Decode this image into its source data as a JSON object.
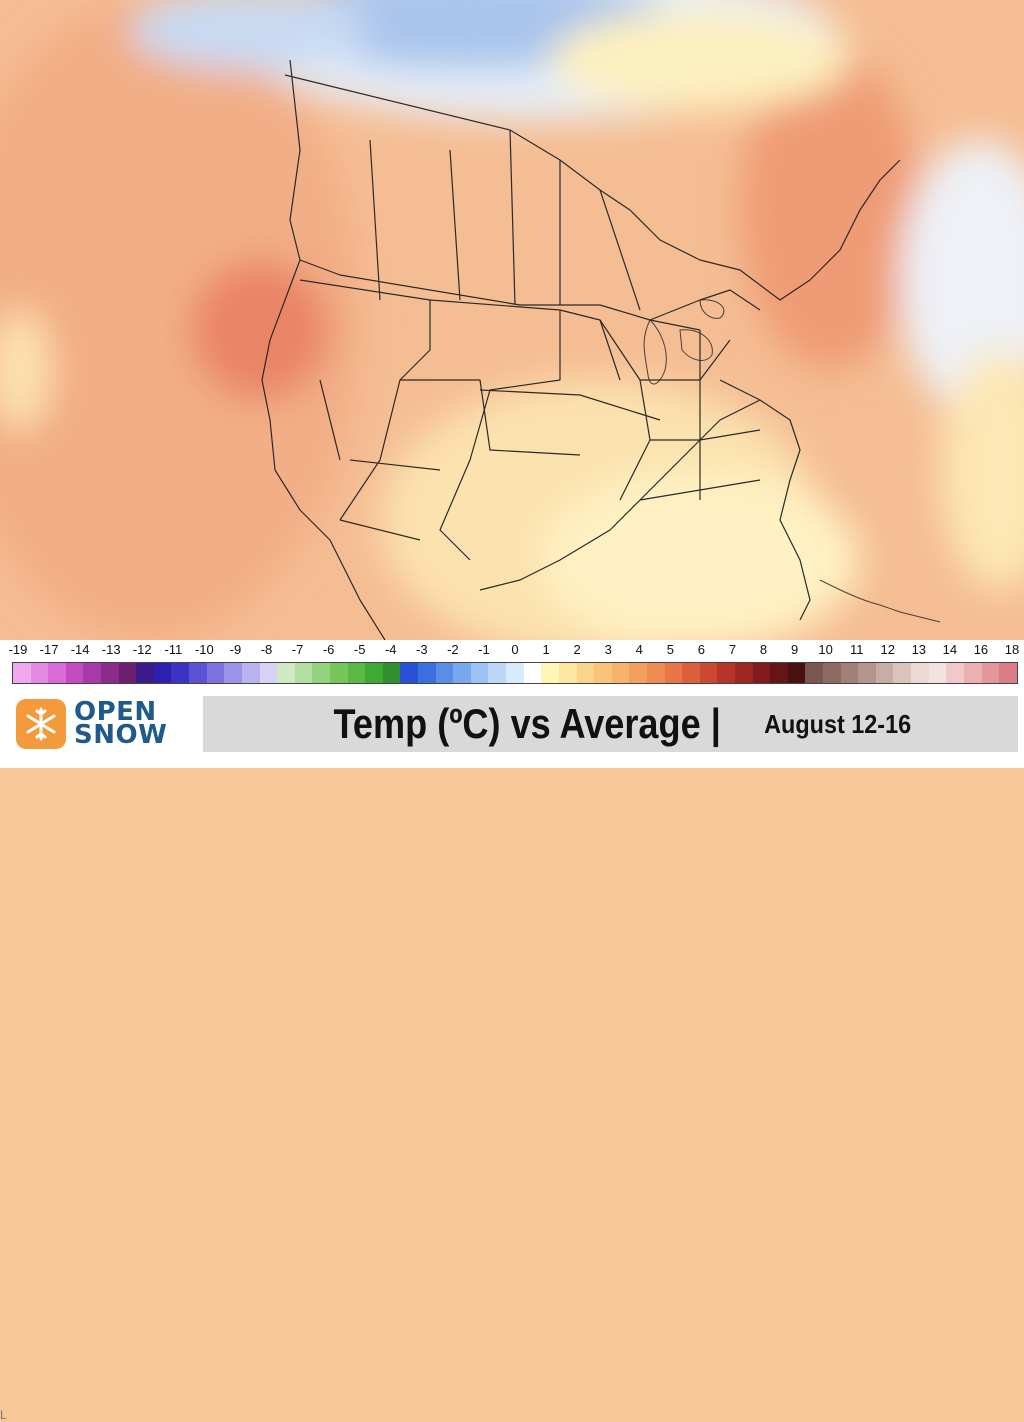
{
  "map": {
    "description_colors": {
      "ocean_warm": "#f5b98d",
      "land_warm": "#f6c197",
      "hot": "#ea8466",
      "mild": "#fbe6b4",
      "neutral": "#fff8cf",
      "cool": "#c9dcf4",
      "cold": "#a8c6ee",
      "coldest": "#8fb3e6",
      "border": "#2a2a2a"
    }
  },
  "scale": {
    "labels": [
      "-19",
      "-17",
      "-14",
      "-13",
      "-12",
      "-11",
      "-10",
      "-9",
      "-8",
      "-7",
      "-6",
      "-5",
      "-4",
      "-3",
      "-2",
      "-1",
      "0",
      "1",
      "2",
      "3",
      "4",
      "5",
      "6",
      "7",
      "8",
      "9",
      "10",
      "11",
      "12",
      "13",
      "14",
      "16",
      "18"
    ],
    "colors": [
      "#f0a8ee",
      "#e58ae3",
      "#d96ad6",
      "#c44bc2",
      "#a83aa8",
      "#8a2d8a",
      "#6e2070",
      "#3b1a8a",
      "#2d1fb0",
      "#3a33c6",
      "#5b52d6",
      "#7c72e0",
      "#9a93e8",
      "#b9b3ef",
      "#d6d3f5",
      "#cfe9c4",
      "#b2e0a3",
      "#95d47f",
      "#76c65c",
      "#5bb944",
      "#3faa32",
      "#2f8f2c",
      "#2b4fd6",
      "#3a6fe0",
      "#5a8de8",
      "#7aa8ee",
      "#9cc3f3",
      "#bcd8f7",
      "#d8ebfa",
      "#ffffff",
      "#fff6b5",
      "#fde6a0",
      "#fbd58c",
      "#f9c47a",
      "#f7b36b",
      "#f3a05e",
      "#ee8c52",
      "#e77546",
      "#dc5e3b",
      "#cc4832",
      "#b8342a",
      "#9e2622",
      "#821c1c",
      "#651515",
      "#481010",
      "#7a5650",
      "#8e6a63",
      "#a27f78",
      "#b6958e",
      "#c9aca6",
      "#dbc3bd",
      "#ead9d4",
      "#f3e3e0",
      "#f2c9c9",
      "#ebb0b2",
      "#e3979b",
      "#da7f86"
    ]
  },
  "footer": {
    "logo_line1": "OPEN",
    "logo_line2": "SNOW",
    "title_main": "Temp (ºC) vs Average |",
    "title_sub": "August 12-16",
    "edge_letter": "L"
  }
}
